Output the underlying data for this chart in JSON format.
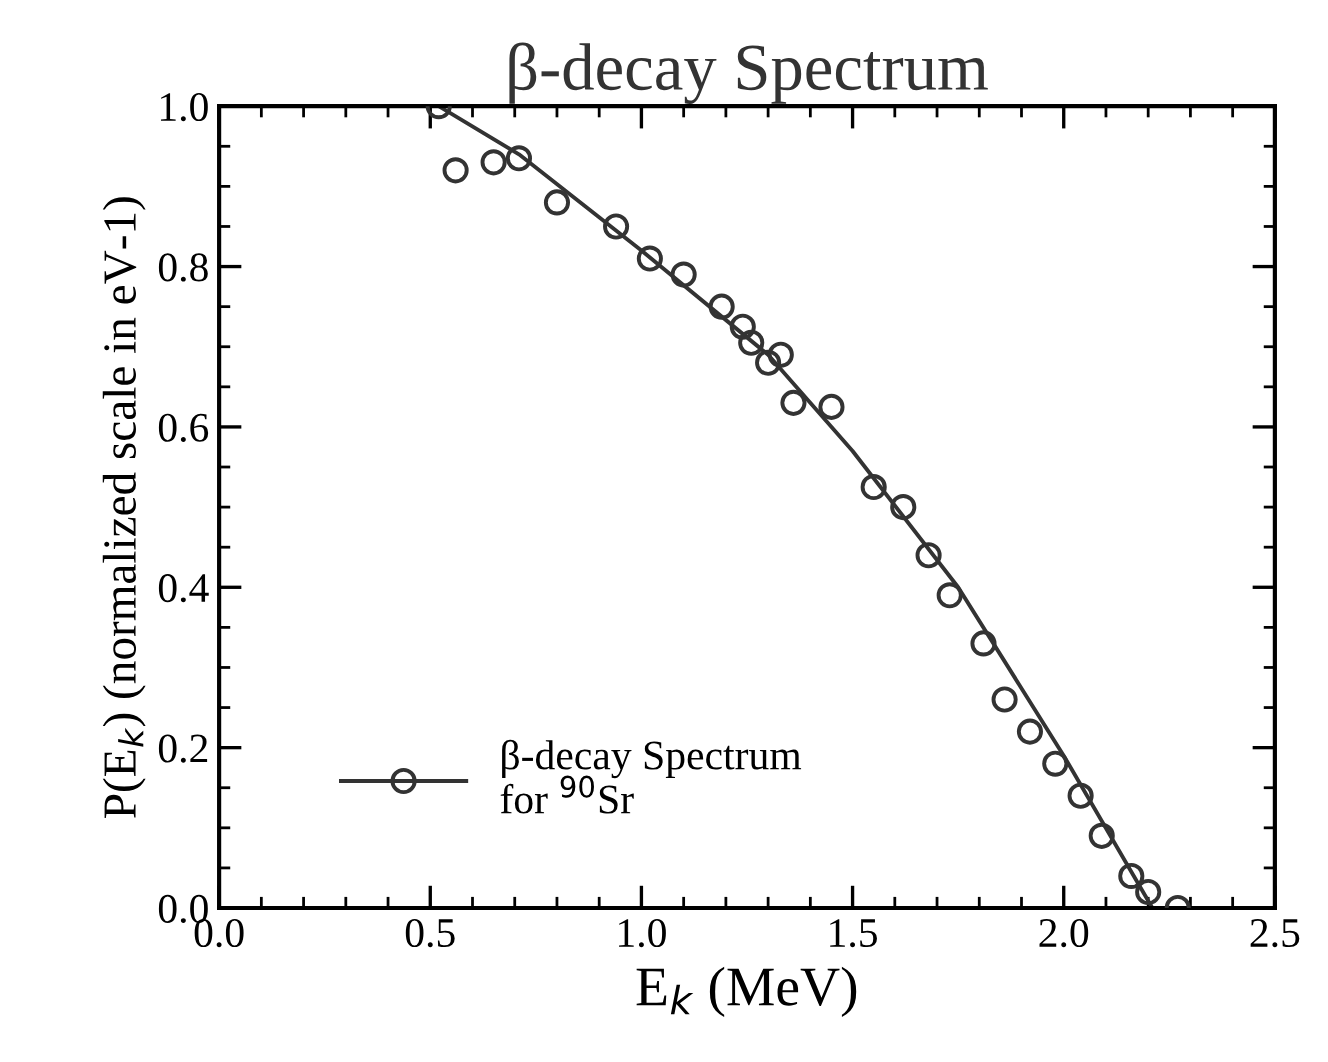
{
  "chart_data": {
    "type": "scatter",
    "title": "β-decay Spectrum",
    "xlabel": "E$_{k}$ (MeV)",
    "ylabel": "P(E$_{k}$) (normalized scale in eV-1)",
    "xlim": [
      0,
      2.5
    ],
    "ylim": [
      0,
      1.0
    ],
    "xticks": [
      {
        "value": 0,
        "label": "0.0"
      },
      {
        "value": 0.5,
        "label": "0.5"
      },
      {
        "value": 1.0,
        "label": "1.0"
      },
      {
        "value": 1.5,
        "label": "1.5"
      },
      {
        "value": 2.0,
        "label": "2.0"
      },
      {
        "value": 2.5,
        "label": "2.5"
      }
    ],
    "yticks": [
      {
        "value": 0,
        "label": "0.0"
      },
      {
        "value": 0.2,
        "label": "0.2"
      },
      {
        "value": 0.4,
        "label": "0.4"
      },
      {
        "value": 0.6,
        "label": "0.6"
      },
      {
        "value": 0.8,
        "label": "0.8"
      },
      {
        "value": 1.0,
        "label": "1.0"
      }
    ],
    "grid": false,
    "legend": "bottom left",
    "series": [
      {
        "name": "β-decay Spectrum\nfor $^{90}$Sr",
        "marker": "circle",
        "color": "#333333",
        "x": [
          0.52,
          0.56,
          0.65,
          0.71,
          0.8,
          0.94,
          1.02,
          1.1,
          1.19,
          1.24,
          1.26,
          1.3,
          1.33,
          1.36,
          1.45,
          1.55,
          1.62,
          1.68,
          1.73,
          1.81,
          1.86,
          1.92,
          1.98,
          2.04,
          2.09,
          2.16,
          2.2,
          2.27
        ],
        "values": [
          1.0,
          0.92,
          0.93,
          0.935,
          0.88,
          0.85,
          0.81,
          0.79,
          0.75,
          0.725,
          0.705,
          0.68,
          0.69,
          0.63,
          0.625,
          0.525,
          0.5,
          0.44,
          0.39,
          0.33,
          0.26,
          0.22,
          0.18,
          0.14,
          0.09,
          0.04,
          0.02,
          0.0
        ]
      },
      {
        "type": "line",
        "marker": "none",
        "line_style": "solid",
        "color": "#333333",
        "x": [
          0.52,
          0.71,
          1.0,
          1.3,
          1.5,
          1.75,
          2.0,
          2.21
        ],
        "values": [
          1.0,
          0.94,
          0.82,
          0.69,
          0.57,
          0.4,
          0.19,
          0.0
        ]
      }
    ]
  }
}
